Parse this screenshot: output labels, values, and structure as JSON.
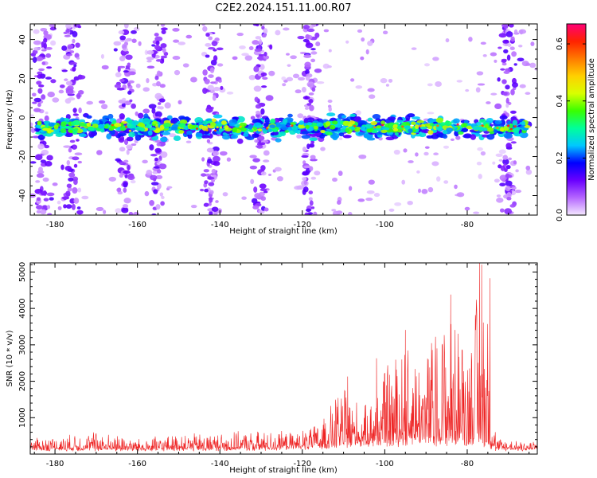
{
  "title": "C2E2.2024.151.11.00.R07",
  "chart_data": [
    {
      "type": "heatmap",
      "xlabel": "Height of straight line (km)",
      "ylabel": "Frequency (Hz)",
      "xlim": [
        -186,
        -63
      ],
      "ylim": [
        -50,
        48
      ],
      "x_ticks": [
        -180,
        -160,
        -140,
        -120,
        -100,
        -80
      ],
      "y_ticks": [
        -40,
        -20,
        0,
        20,
        40
      ],
      "x_tick_labels": [
        "-180",
        "-160",
        "-140",
        "-120",
        "-100",
        "-80"
      ],
      "y_tick_labels": [
        "-40",
        "-20",
        "0",
        "20",
        "40"
      ],
      "signal_band": {
        "center_hz": -5,
        "halfwidth_hz": 8
      },
      "noise_columns_km": [
        -183,
        -176,
        -163,
        -155,
        -142,
        -130,
        -118,
        -70
      ],
      "colorbar": {
        "label": "Normalized spectral amplitude",
        "range": [
          0.0,
          0.67
        ],
        "ticks": [
          0.0,
          0.2,
          0.4,
          0.6
        ],
        "tick_labels": [
          "0.0",
          "0.2",
          "0.4",
          "0.6"
        ],
        "colormap": [
          "#f4e8ff",
          "#b566ff",
          "#6a00ff",
          "#0000ff",
          "#00c8ff",
          "#00ff9a",
          "#39ff00",
          "#d9ff00",
          "#ffd000",
          "#ff7a00",
          "#ff2200",
          "#ff0077"
        ]
      }
    },
    {
      "type": "line",
      "xlabel": "Height of straight line (km)",
      "ylabel": "SNR (10 * v/v)",
      "xlim": [
        -186,
        -63
      ],
      "ylim": [
        0,
        5250
      ],
      "x_ticks": [
        -180,
        -160,
        -140,
        -120,
        -100,
        -80
      ],
      "y_ticks": [
        1000,
        2000,
        3000,
        4000,
        5000
      ],
      "x_tick_labels": [
        "-180",
        "-160",
        "-140",
        "-120",
        "-100",
        "-80"
      ],
      "y_tick_labels": [
        "1000",
        "2000",
        "3000",
        "4000",
        "5000"
      ],
      "color": "#ee2222",
      "envelope": {
        "x_km": [
          -186,
          -178,
          -170,
          -160,
          -150,
          -140,
          -130,
          -122,
          -116,
          -110,
          -105,
          -100,
          -95,
          -90,
          -85,
          -80,
          -77,
          -75,
          -73,
          -68,
          -63
        ],
        "snr_max": [
          500,
          550,
          700,
          450,
          600,
          650,
          700,
          650,
          900,
          2100,
          1400,
          2600,
          3400,
          3200,
          4400,
          3700,
          5250,
          4800,
          500,
          450,
          400
        ],
        "snr_floor": [
          150,
          150,
          150,
          150,
          150,
          150,
          170,
          200,
          250,
          300,
          350,
          350,
          400,
          400,
          400,
          400,
          400,
          300,
          150,
          150,
          150
        ]
      },
      "peaks": [
        {
          "x": -109,
          "y": 2130
        },
        {
          "x": -102,
          "y": 2630
        },
        {
          "x": -95,
          "y": 3410
        },
        {
          "x": -84,
          "y": 4380
        },
        {
          "x": -77,
          "y": 5250
        },
        {
          "x": -76.5,
          "y": 5200
        },
        {
          "x": -74.5,
          "y": 4830
        }
      ]
    }
  ]
}
